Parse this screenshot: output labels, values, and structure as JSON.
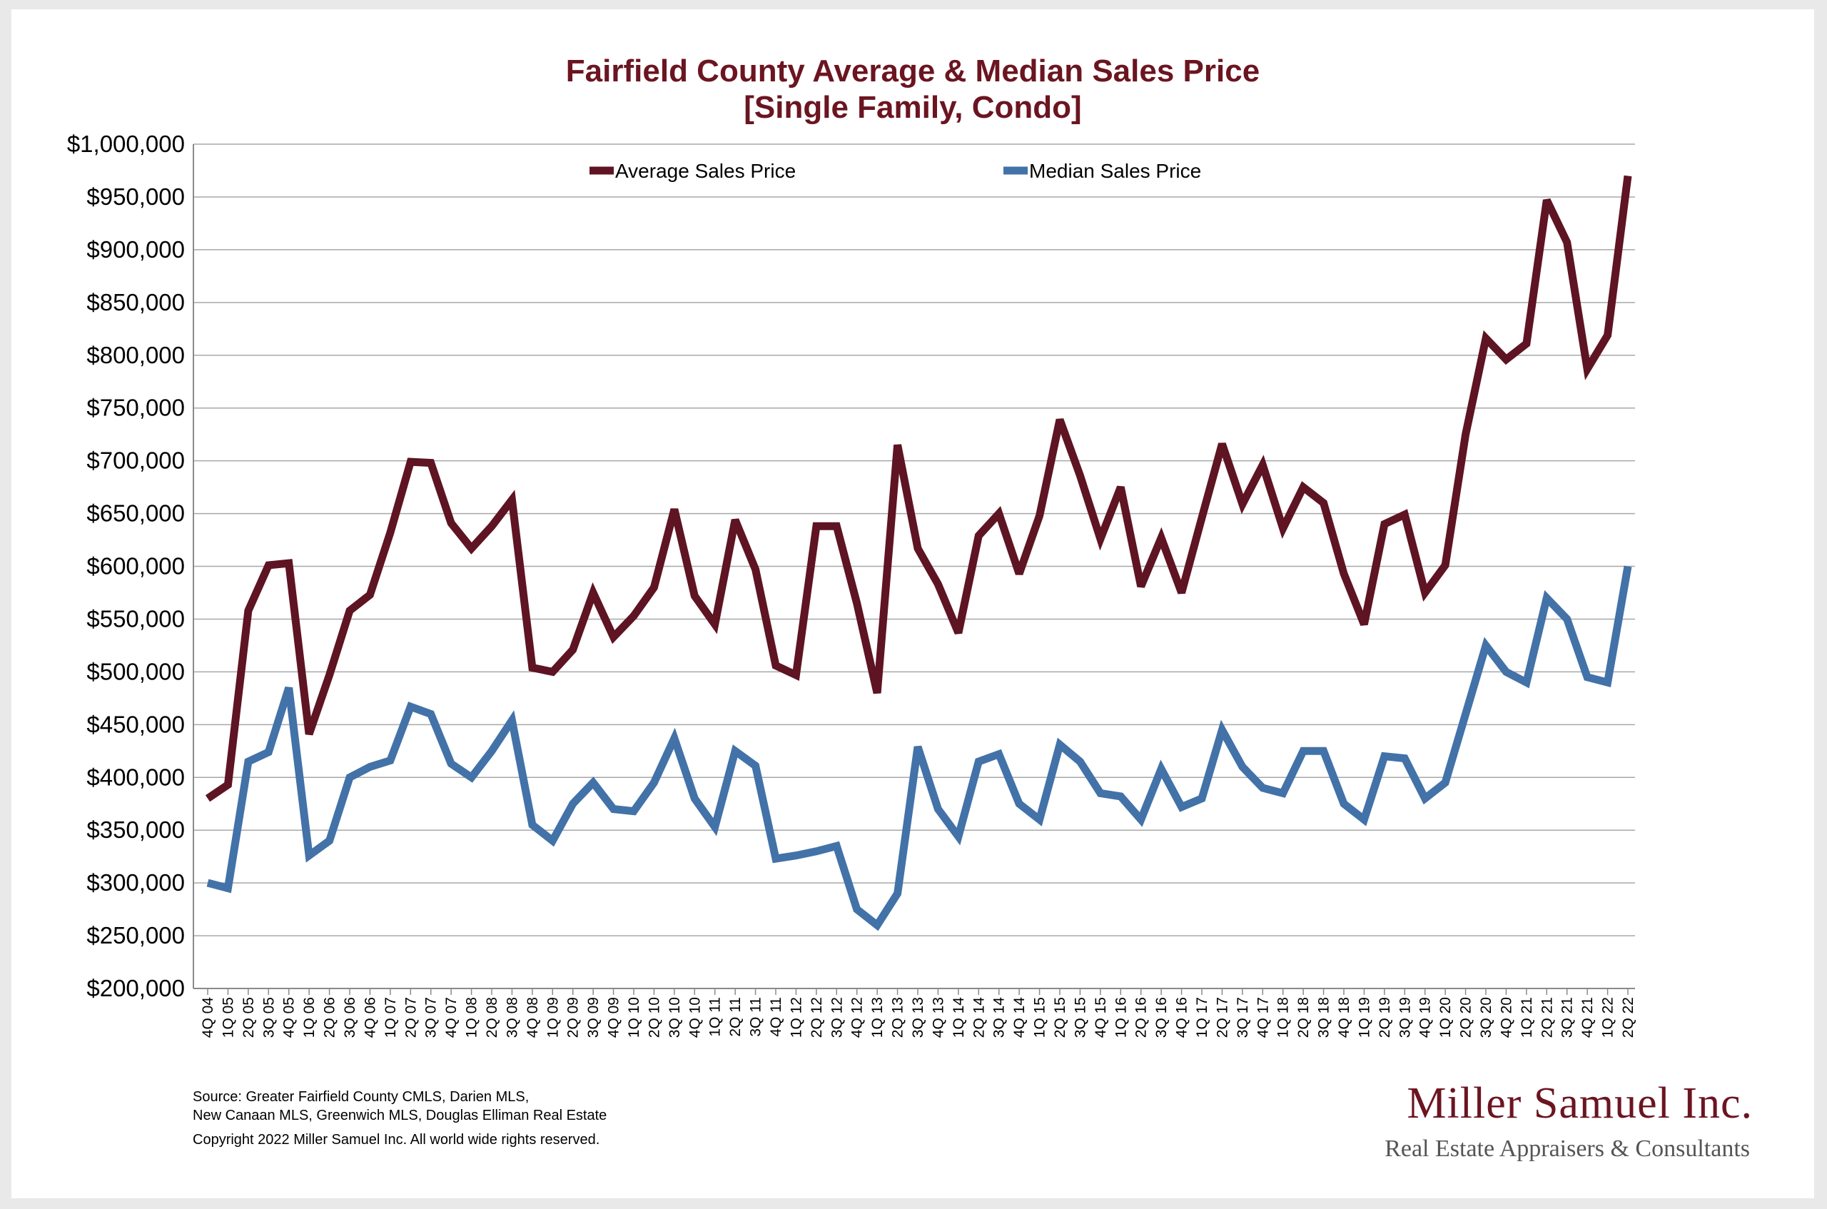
{
  "chart_data": {
    "type": "line",
    "title_line1": "Fairfield County Average & Median Sales Price",
    "title_line2": "[Single Family, Condo]",
    "ylim": [
      200000,
      1000000
    ],
    "ytick_step": 50000,
    "grid": true,
    "legend_placement": "top",
    "categories": [
      "4Q 04",
      "1Q 05",
      "2Q 05",
      "3Q 05",
      "4Q 05",
      "1Q 06",
      "2Q 06",
      "3Q 06",
      "4Q 06",
      "1Q 07",
      "2Q 07",
      "3Q 07",
      "4Q 07",
      "1Q 08",
      "2Q 08",
      "3Q 08",
      "4Q 08",
      "1Q 09",
      "2Q 09",
      "3Q 09",
      "4Q 09",
      "1Q 10",
      "2Q 10",
      "3Q 10",
      "4Q 10",
      "1Q 11",
      "2Q 11",
      "3Q 11",
      "4Q 11",
      "1Q 12",
      "2Q 12",
      "3Q 12",
      "4Q 12",
      "1Q 13",
      "2Q 13",
      "3Q 13",
      "4Q 13",
      "1Q 14",
      "2Q 14",
      "3Q 14",
      "4Q 14",
      "1Q 15",
      "2Q 15",
      "3Q 15",
      "4Q 15",
      "1Q 16",
      "2Q 16",
      "3Q 16",
      "4Q 16",
      "1Q 17",
      "2Q 17",
      "3Q 17",
      "4Q 17",
      "1Q 18",
      "2Q 18",
      "3Q 18",
      "4Q 18",
      "1Q 19",
      "2Q 19",
      "3Q 19",
      "4Q 19",
      "1Q 20",
      "2Q 20",
      "3Q 20",
      "4Q 20",
      "1Q 21",
      "2Q 21",
      "3Q 21",
      "4Q 21",
      "1Q 22",
      "2Q 22"
    ],
    "series": [
      {
        "name": "Average Sales Price",
        "color": "#5e1422",
        "values": [
          380000,
          393000,
          558000,
          601000,
          603000,
          441000,
          497000,
          558000,
          573000,
          632000,
          699000,
          698000,
          641000,
          617000,
          638000,
          663000,
          504000,
          500000,
          521000,
          575000,
          533000,
          553000,
          580000,
          654000,
          572000,
          545000,
          644000,
          597000,
          506000,
          497000,
          638000,
          638000,
          565000,
          480000,
          715000,
          617000,
          583000,
          537000,
          629000,
          650000,
          593000,
          648000,
          739000,
          686000,
          626000,
          675000,
          581000,
          627000,
          575000,
          646000,
          716000,
          659000,
          696000,
          636000,
          675000,
          660000,
          593000,
          545000,
          640000,
          649000,
          575000,
          601000,
          725000,
          816000,
          796000,
          811000,
          947000,
          907000,
          787000,
          819000,
          970000
        ]
      },
      {
        "name": "Median Sales Price",
        "color": "#4272a8",
        "values": [
          300000,
          295000,
          415000,
          424000,
          485000,
          326000,
          340000,
          400000,
          410000,
          416000,
          467000,
          460000,
          413000,
          400000,
          425000,
          454000,
          355000,
          340000,
          375000,
          395000,
          370000,
          368000,
          395000,
          437000,
          380000,
          353000,
          425000,
          411000,
          323000,
          326000,
          330000,
          335000,
          275000,
          260000,
          290000,
          429000,
          370000,
          344000,
          415000,
          422000,
          375000,
          360000,
          431000,
          415000,
          385000,
          382000,
          360000,
          408000,
          372000,
          380000,
          445000,
          410000,
          390000,
          385000,
          425000,
          425000,
          375000,
          360000,
          420000,
          418000,
          380000,
          395000,
          460000,
          525000,
          500000,
          490000,
          570000,
          550000,
          495000,
          490000,
          600000
        ]
      }
    ]
  },
  "y_tick_labels": [
    "$1,000,000",
    "$950,000",
    "$900,000",
    "$850,000",
    "$800,000",
    "$750,000",
    "$700,000",
    "$650,000",
    "$600,000",
    "$550,000",
    "$500,000",
    "$450,000",
    "$400,000",
    "$350,000",
    "$300,000",
    "$250,000",
    "$200,000"
  ],
  "source": {
    "line1": "Source:  Greater Fairfield County CMLS, Darien MLS,",
    "line2": "New Canaan MLS, Greenwich MLS, Douglas Elliman Real Estate",
    "copyright": "Copyright 2022 Miller Samuel Inc.  All world wide rights reserved."
  },
  "logo": {
    "name": "Miller Samuel Inc.",
    "tagline": "Real Estate Appraisers & Consultants"
  }
}
